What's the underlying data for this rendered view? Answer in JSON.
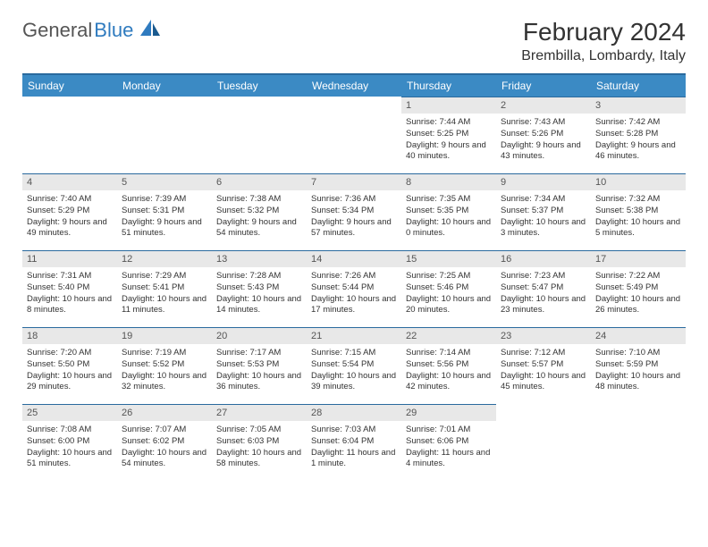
{
  "logo": {
    "text1": "General",
    "text2": "Blue"
  },
  "title": "February 2024",
  "location": "Brembilla, Lombardy, Italy",
  "colors": {
    "header_bg": "#3b8ac4",
    "header_border": "#2a6a9e",
    "daynum_bg": "#e8e8e8",
    "logo_blue": "#2f7bbf"
  },
  "daysOfWeek": [
    "Sunday",
    "Monday",
    "Tuesday",
    "Wednesday",
    "Thursday",
    "Friday",
    "Saturday"
  ],
  "weeks": [
    [
      {
        "n": "",
        "sr": "",
        "ss": "",
        "dl": ""
      },
      {
        "n": "",
        "sr": "",
        "ss": "",
        "dl": ""
      },
      {
        "n": "",
        "sr": "",
        "ss": "",
        "dl": ""
      },
      {
        "n": "",
        "sr": "",
        "ss": "",
        "dl": ""
      },
      {
        "n": "1",
        "sr": "7:44 AM",
        "ss": "5:25 PM",
        "dl": "9 hours and 40 minutes."
      },
      {
        "n": "2",
        "sr": "7:43 AM",
        "ss": "5:26 PM",
        "dl": "9 hours and 43 minutes."
      },
      {
        "n": "3",
        "sr": "7:42 AM",
        "ss": "5:28 PM",
        "dl": "9 hours and 46 minutes."
      }
    ],
    [
      {
        "n": "4",
        "sr": "7:40 AM",
        "ss": "5:29 PM",
        "dl": "9 hours and 49 minutes."
      },
      {
        "n": "5",
        "sr": "7:39 AM",
        "ss": "5:31 PM",
        "dl": "9 hours and 51 minutes."
      },
      {
        "n": "6",
        "sr": "7:38 AM",
        "ss": "5:32 PM",
        "dl": "9 hours and 54 minutes."
      },
      {
        "n": "7",
        "sr": "7:36 AM",
        "ss": "5:34 PM",
        "dl": "9 hours and 57 minutes."
      },
      {
        "n": "8",
        "sr": "7:35 AM",
        "ss": "5:35 PM",
        "dl": "10 hours and 0 minutes."
      },
      {
        "n": "9",
        "sr": "7:34 AM",
        "ss": "5:37 PM",
        "dl": "10 hours and 3 minutes."
      },
      {
        "n": "10",
        "sr": "7:32 AM",
        "ss": "5:38 PM",
        "dl": "10 hours and 5 minutes."
      }
    ],
    [
      {
        "n": "11",
        "sr": "7:31 AM",
        "ss": "5:40 PM",
        "dl": "10 hours and 8 minutes."
      },
      {
        "n": "12",
        "sr": "7:29 AM",
        "ss": "5:41 PM",
        "dl": "10 hours and 11 minutes."
      },
      {
        "n": "13",
        "sr": "7:28 AM",
        "ss": "5:43 PM",
        "dl": "10 hours and 14 minutes."
      },
      {
        "n": "14",
        "sr": "7:26 AM",
        "ss": "5:44 PM",
        "dl": "10 hours and 17 minutes."
      },
      {
        "n": "15",
        "sr": "7:25 AM",
        "ss": "5:46 PM",
        "dl": "10 hours and 20 minutes."
      },
      {
        "n": "16",
        "sr": "7:23 AM",
        "ss": "5:47 PM",
        "dl": "10 hours and 23 minutes."
      },
      {
        "n": "17",
        "sr": "7:22 AM",
        "ss": "5:49 PM",
        "dl": "10 hours and 26 minutes."
      }
    ],
    [
      {
        "n": "18",
        "sr": "7:20 AM",
        "ss": "5:50 PM",
        "dl": "10 hours and 29 minutes."
      },
      {
        "n": "19",
        "sr": "7:19 AM",
        "ss": "5:52 PM",
        "dl": "10 hours and 32 minutes."
      },
      {
        "n": "20",
        "sr": "7:17 AM",
        "ss": "5:53 PM",
        "dl": "10 hours and 36 minutes."
      },
      {
        "n": "21",
        "sr": "7:15 AM",
        "ss": "5:54 PM",
        "dl": "10 hours and 39 minutes."
      },
      {
        "n": "22",
        "sr": "7:14 AM",
        "ss": "5:56 PM",
        "dl": "10 hours and 42 minutes."
      },
      {
        "n": "23",
        "sr": "7:12 AM",
        "ss": "5:57 PM",
        "dl": "10 hours and 45 minutes."
      },
      {
        "n": "24",
        "sr": "7:10 AM",
        "ss": "5:59 PM",
        "dl": "10 hours and 48 minutes."
      }
    ],
    [
      {
        "n": "25",
        "sr": "7:08 AM",
        "ss": "6:00 PM",
        "dl": "10 hours and 51 minutes."
      },
      {
        "n": "26",
        "sr": "7:07 AM",
        "ss": "6:02 PM",
        "dl": "10 hours and 54 minutes."
      },
      {
        "n": "27",
        "sr": "7:05 AM",
        "ss": "6:03 PM",
        "dl": "10 hours and 58 minutes."
      },
      {
        "n": "28",
        "sr": "7:03 AM",
        "ss": "6:04 PM",
        "dl": "11 hours and 1 minute."
      },
      {
        "n": "29",
        "sr": "7:01 AM",
        "ss": "6:06 PM",
        "dl": "11 hours and 4 minutes."
      },
      {
        "n": "",
        "sr": "",
        "ss": "",
        "dl": ""
      },
      {
        "n": "",
        "sr": "",
        "ss": "",
        "dl": ""
      }
    ]
  ]
}
